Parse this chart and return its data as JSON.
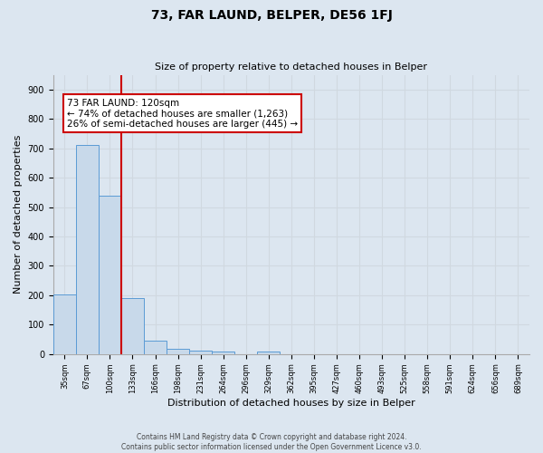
{
  "title": "73, FAR LAUND, BELPER, DE56 1FJ",
  "subtitle": "Size of property relative to detached houses in Belper",
  "xlabel": "Distribution of detached houses by size in Belper",
  "ylabel": "Number of detached properties",
  "bin_labels": [
    "35sqm",
    "67sqm",
    "100sqm",
    "133sqm",
    "166sqm",
    "198sqm",
    "231sqm",
    "264sqm",
    "296sqm",
    "329sqm",
    "362sqm",
    "395sqm",
    "427sqm",
    "460sqm",
    "493sqm",
    "525sqm",
    "558sqm",
    "591sqm",
    "624sqm",
    "656sqm",
    "689sqm"
  ],
  "bar_values": [
    203,
    712,
    540,
    192,
    45,
    18,
    13,
    10,
    0,
    8,
    0,
    0,
    0,
    0,
    0,
    0,
    0,
    0,
    0,
    0,
    0
  ],
  "bar_color": "#c8d9ea",
  "bar_edge_color": "#5b9bd5",
  "vline_x_index": 2.5,
  "vline_color": "#cc0000",
  "annotation_text": "73 FAR LAUND: 120sqm\n← 74% of detached houses are smaller (1,263)\n26% of semi-detached houses are larger (445) →",
  "annotation_box_color": "#ffffff",
  "annotation_box_edge": "#cc0000",
  "ylim": [
    0,
    950
  ],
  "yticks": [
    0,
    100,
    200,
    300,
    400,
    500,
    600,
    700,
    800,
    900
  ],
  "grid_color": "#d0d8e0",
  "background_color": "#dce6f0",
  "footer_line1": "Contains HM Land Registry data © Crown copyright and database right 2024.",
  "footer_line2": "Contains public sector information licensed under the Open Government Licence v3.0."
}
